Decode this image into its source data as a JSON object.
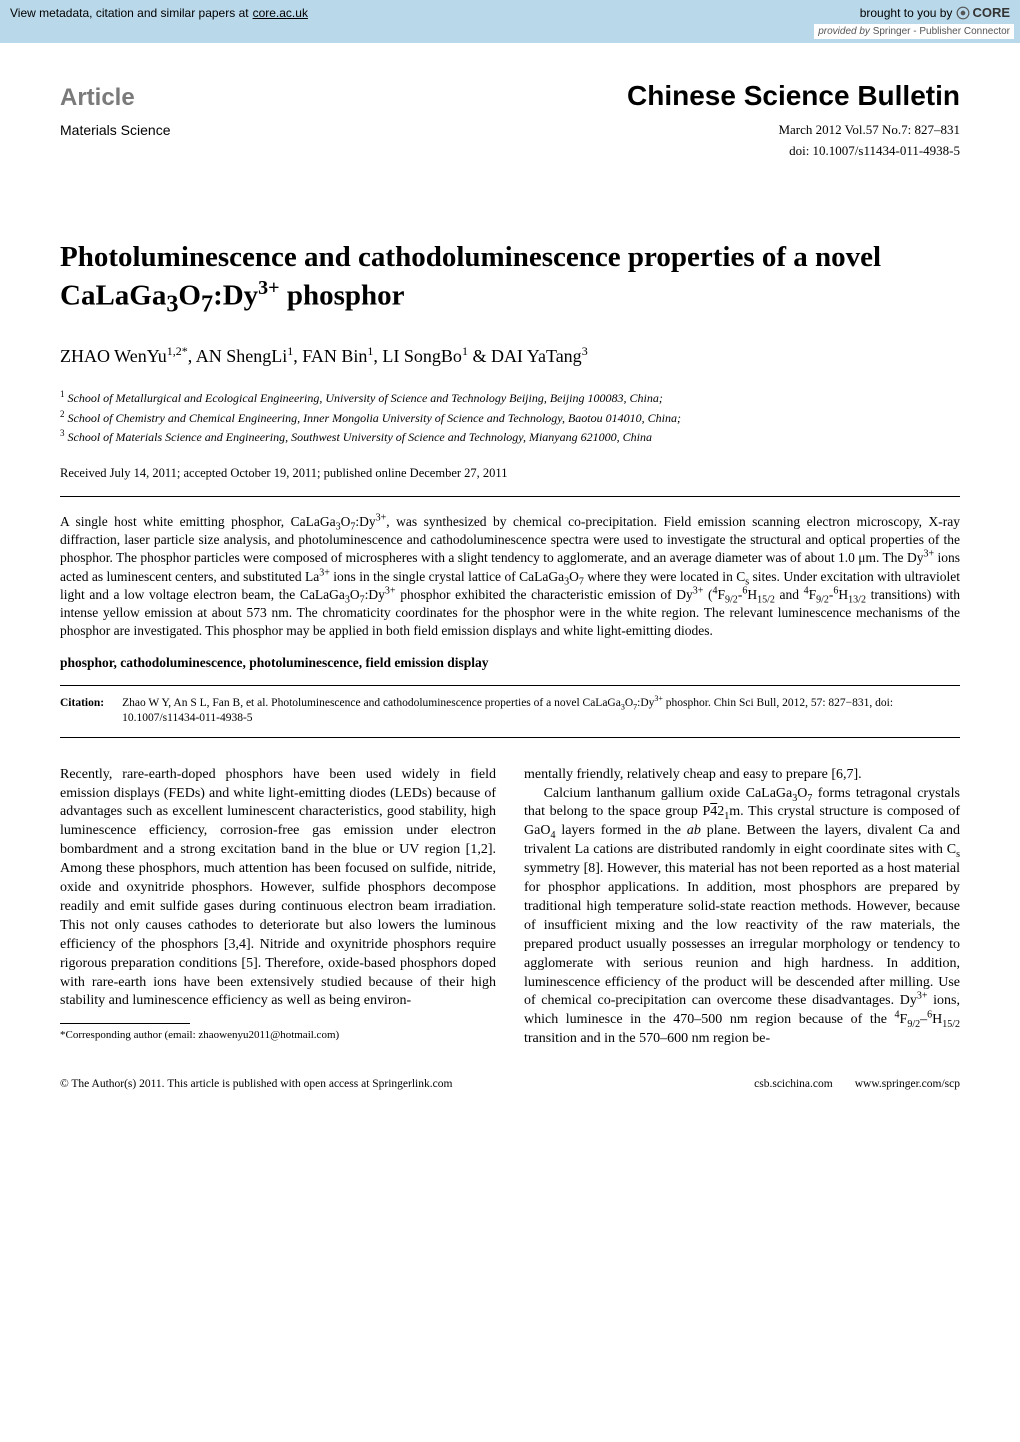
{
  "core_banner": {
    "left_label": "View metadata, citation and similar papers at ",
    "left_link": "core.ac.uk",
    "right_label": "brought to you by ",
    "logo_text": "CORE",
    "provided_prefix": "provided by ",
    "provided_value": "Springer - Publisher Connector",
    "bg_color": "#b9d8e9"
  },
  "header": {
    "article_label": "Article",
    "journal": "Chinese Science Bulletin",
    "section": "Materials Science",
    "issue_info": "March 2012    Vol.57    No.7: 827–831",
    "doi": "doi: 10.1007/s11434-011-4938-5"
  },
  "title": {
    "line1_html": "Photoluminescence and cathodoluminescence properties of a novel",
    "line2_prefix": "CaLaGa",
    "line2_sub1": "3",
    "line2_mid": "O",
    "line2_sub2": "7",
    "line2_after": ":Dy",
    "line2_sup": "3+",
    "line2_suffix": " phosphor"
  },
  "authors_html": "ZHAO WenYu<sup>1,2*</sup>, AN ShengLi<sup>1</sup>, FAN Bin<sup>1</sup>, LI SongBo<sup>1</sup> &amp; DAI YaTang<sup>3</sup>",
  "affiliations": [
    {
      "num": "1",
      "text": "School of Metallurgical and Ecological Engineering, University of Science and Technology Beijing, Beijing 100083, China;"
    },
    {
      "num": "2",
      "text": "School of Chemistry and Chemical Engineering, Inner Mongolia University of Science and Technology, Baotou 014010, China;"
    },
    {
      "num": "3",
      "text": "School of Materials Science and Engineering, Southwest University of Science and Technology, Mianyang 621000, China"
    }
  ],
  "received": "Received July 14, 2011; accepted October 19, 2011; published online December 27, 2011",
  "abstract_html": "A single host white emitting phosphor, CaLaGa<sub>3</sub>O<sub>7</sub>:Dy<sup>3+</sup>, was synthesized by chemical co-precipitation. Field emission scanning electron microscopy, X-ray diffraction, laser particle size analysis, and photoluminescence and cathodoluminescence spectra were used to investigate the structural and optical properties of the phosphor. The phosphor particles were composed of microspheres with a slight tendency to agglomerate, and an average diameter was of about 1.0 μm. The Dy<sup>3+</sup> ions acted as luminescent centers, and substituted La<sup>3+</sup> ions in the single crystal lattice of CaLaGa<sub>3</sub>O<sub>7</sub> where they were located in C<sub>s</sub> sites. Under excitation with ultraviolet light and a low voltage electron beam, the CaLaGa<sub>3</sub>O<sub>7</sub>:Dy<sup>3+</sup> phosphor exhibited the characteristic emission of Dy<sup>3+</sup> (<sup>4</sup>F<sub>9/2</sub>-<sup>6</sup>H<sub>15/2</sub> and <sup>4</sup>F<sub>9/2</sub>-<sup>6</sup>H<sub>13/2</sub> transitions) with intense yellow emission at about 573 nm. The chromaticity coordinates for the phosphor were in the white region. The relevant luminescence mechanisms of the phosphor are investigated. This phosphor may be applied in both field emission displays and white light-emitting diodes.",
  "keywords": "phosphor, cathodoluminescence, photoluminescence, field emission display",
  "citation": {
    "label": "Citation:",
    "text_html": "Zhao W Y, An S L, Fan B, et al. Photoluminescence and cathodoluminescence properties of a novel CaLaGa<sub>3</sub>O<sub>7</sub>:Dy<sup>3+</sup> phosphor. Chin Sci Bull, 2012, 57: 827−831, doi: 10.1007/s11434-011-4938-5"
  },
  "body": {
    "col1_p1_html": "Recently, rare-earth-doped phosphors have been used widely in field emission displays (FEDs) and white light-emitting diodes (LEDs) because of advantages such as excellent luminescent characteristics, good stability, high luminescence efficiency, corrosion-free gas emission under electron bombardment and a strong excitation band in the blue or UV region [1,2]. Among these phosphors, much attention has been focused on sulfide, nitride, oxide and oxynitride phosphors. However, sulfide phosphors decompose readily and emit sulfide gases during continuous electron beam irradiation. This not only causes cathodes to deteriorate but also lowers the luminous efficiency of the phosphors [3,4]. Nitride and oxynitride phosphors require rigorous preparation conditions [5]. Therefore, oxide-based phosphors doped with rare-earth ions have been extensively studied because of their high stability and luminescence efficiency as well as being environ-",
    "col2_p1_html": "mentally friendly, relatively cheap and easy to prepare [6,7].",
    "col2_p2_html": "Calcium lanthanum gallium oxide CaLaGa<sub>3</sub>O<sub>7</sub> forms tetragonal crystals that belong to the space group P<span class=\"overbar\">4</span>2<sub>1</sub>m. This crystal structure is composed of GaO<sub>4</sub> layers formed in the <i>ab</i> plane. Between the layers, divalent Ca and trivalent La cations are distributed randomly in eight coordinate sites with C<sub>s</sub> symmetry [8]. However, this material has not been reported as a host material for phosphor applications. In addition, most phosphors are prepared by traditional high temperature solid-state reaction methods. However, because of insufficient mixing and the low reactivity of the raw materials, the prepared product usually possesses an irregular morphology or tendency to agglomerate with serious reunion and high hardness. In addition, luminescence efficiency of the product will be descended after milling. Use of chemical co-precipitation can overcome these disadvantages. Dy<sup>3+</sup> ions, which luminesce in the 470–500 nm region because of the <sup>4</sup>F<sub>9/2</sub>–<sup>6</sup>H<sub>15/2</sub> transition and in the 570–600 nm region be-"
  },
  "footnote": "*Corresponding author (email: zhaowenyu2011@hotmail.com)",
  "footer": {
    "left": "© The Author(s) 2011. This article is published with open access at Springerlink.com",
    "right1": "csb.scichina.com",
    "right2": "www.springer.com/scp"
  }
}
